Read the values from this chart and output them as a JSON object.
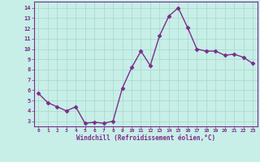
{
  "x": [
    0,
    1,
    2,
    3,
    4,
    5,
    6,
    7,
    8,
    9,
    10,
    11,
    12,
    13,
    14,
    15,
    16,
    17,
    18,
    19,
    20,
    21,
    22,
    23
  ],
  "y": [
    5.7,
    4.8,
    4.4,
    4.0,
    4.4,
    2.8,
    2.9,
    2.8,
    3.0,
    6.2,
    8.2,
    9.8,
    8.4,
    11.3,
    13.2,
    14.0,
    12.1,
    10.0,
    9.8,
    9.8,
    9.4,
    9.5,
    9.2,
    8.6
  ],
  "line_color": "#7B2D8B",
  "marker_color": "#7B2D8B",
  "bg_color": "#C8EEE8",
  "grid_color": "#AADDCC",
  "xlabel": "Windchill (Refroidissement éolien,°C)",
  "xlabel_color": "#7B2D8B",
  "ylabel_ticks": [
    3,
    4,
    5,
    6,
    7,
    8,
    9,
    10,
    11,
    12,
    13,
    14
  ],
  "xtick_labels": [
    "0",
    "1",
    "2",
    "3",
    "4",
    "5",
    "6",
    "7",
    "8",
    "9",
    "10",
    "11",
    "12",
    "13",
    "14",
    "15",
    "16",
    "17",
    "18",
    "19",
    "20",
    "21",
    "22",
    "23"
  ],
  "xlim": [
    -0.5,
    23.5
  ],
  "ylim": [
    2.5,
    14.6
  ],
  "tick_color": "#7B2D8B",
  "spine_color": "#7B2D8B",
  "marker_size": 2.5,
  "line_width": 1.0
}
